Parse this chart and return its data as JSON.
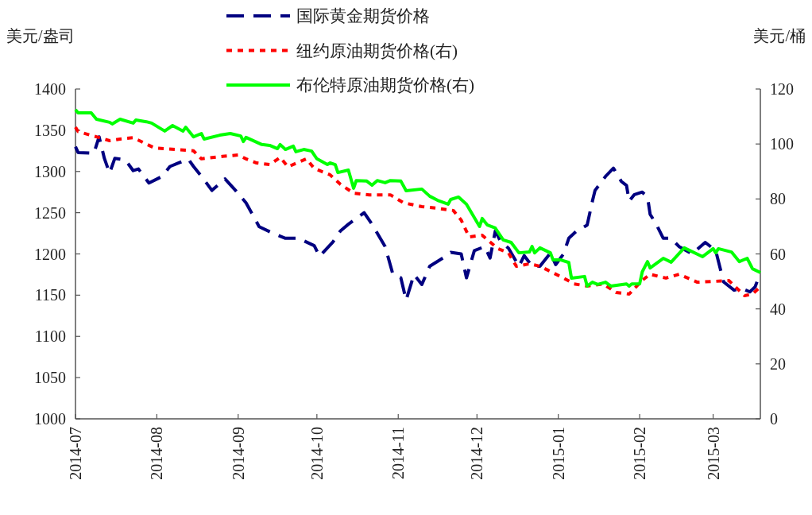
{
  "chart_data": {
    "type": "line",
    "xlabel": null,
    "ylabel": "美元/盎司",
    "y2label": "美元/桶",
    "legend": "top",
    "xlim": [
      "2014-07-01",
      "2015-03-19"
    ],
    "xticks": [
      {
        "value": "2014-07-01",
        "label": "2014-07"
      },
      {
        "value": "2014-08-01",
        "label": "2014-08"
      },
      {
        "value": "2014-09-01",
        "label": "2014-09"
      },
      {
        "value": "2014-10-01",
        "label": "2014-10"
      },
      {
        "value": "2014-11-01",
        "label": "2014-11"
      },
      {
        "value": "2014-12-01",
        "label": "2014-12"
      },
      {
        "value": "2015-01-01",
        "label": "2015-01"
      },
      {
        "value": "2015-02-01",
        "label": "2015-02"
      },
      {
        "value": "2015-03-01",
        "label": "2015-03"
      }
    ],
    "ylim": [
      1000,
      1400
    ],
    "yticks": [
      1000,
      1050,
      1100,
      1150,
      1200,
      1250,
      1300,
      1350,
      1400
    ],
    "y2lim": [
      0,
      120
    ],
    "y2ticks": [
      0,
      20,
      40,
      60,
      80,
      100,
      120
    ],
    "series": [
      {
        "name": "国际黄金期货价格",
        "color": "#000080",
        "axis": "y",
        "line_style": "dashed",
        "x": [
          "2014-07-01",
          "2014-07-02",
          "2014-07-08",
          "2014-07-10",
          "2014-07-12",
          "2014-07-14",
          "2014-07-16",
          "2014-07-20",
          "2014-07-23",
          "2014-07-25",
          "2014-07-29",
          "2014-08-03",
          "2014-08-06",
          "2014-08-09",
          "2014-08-13",
          "2014-08-15",
          "2014-08-19",
          "2014-08-22",
          "2014-08-27",
          "2014-08-31",
          "2014-09-04",
          "2014-09-09",
          "2014-09-15",
          "2014-09-19",
          "2014-09-24",
          "2014-09-30",
          "2014-10-02",
          "2014-10-07",
          "2014-10-10",
          "2014-10-13",
          "2014-10-19",
          "2014-10-22",
          "2014-10-27",
          "2014-10-30",
          "2014-11-02",
          "2014-11-04",
          "2014-11-07",
          "2014-11-10",
          "2014-11-13",
          "2014-11-18",
          "2014-11-21",
          "2014-11-25",
          "2014-11-27",
          "2014-11-30",
          "2014-12-04",
          "2014-12-06",
          "2014-12-08",
          "2014-12-10",
          "2014-12-13",
          "2014-12-17",
          "2014-12-19",
          "2014-12-22",
          "2014-12-25",
          "2014-12-29",
          "2014-12-31",
          "2015-01-03",
          "2015-01-05",
          "2015-01-08",
          "2015-01-12",
          "2015-01-14",
          "2015-01-15",
          "2015-01-19",
          "2015-01-22",
          "2015-01-25",
          "2015-01-27",
          "2015-01-28",
          "2015-01-30",
          "2015-02-02",
          "2015-02-04",
          "2015-02-05",
          "2015-02-07",
          "2015-02-10",
          "2015-02-13",
          "2015-02-16",
          "2015-02-21",
          "2015-02-26",
          "2015-03-02",
          "2015-03-05",
          "2015-03-09",
          "2015-03-12",
          "2015-03-15",
          "2015-03-17",
          "2015-03-19"
        ],
        "values": [
          1330,
          1323,
          1322,
          1342,
          1316,
          1298,
          1316,
          1314,
          1301,
          1303,
          1286,
          1294,
          1306,
          1310,
          1315,
          1306,
          1290,
          1277,
          1291,
          1277,
          1262,
          1233,
          1224,
          1219,
          1219,
          1210,
          1197,
          1214,
          1228,
          1236,
          1250,
          1236,
          1209,
          1175,
          1171,
          1144,
          1175,
          1163,
          1185,
          1195,
          1202,
          1200,
          1171,
          1204,
          1209,
          1195,
          1228,
          1215,
          1207,
          1185,
          1198,
          1185,
          1185,
          1201,
          1187,
          1200,
          1219,
          1228,
          1235,
          1264,
          1277,
          1294,
          1304,
          1288,
          1283,
          1264,
          1272,
          1275,
          1269,
          1248,
          1238,
          1219,
          1219,
          1209,
          1200,
          1214,
          1204,
          1166,
          1156,
          1158,
          1154,
          1160,
          1177
        ]
      },
      {
        "name": "纽约原油期货价格(右)",
        "color": "#ff0000",
        "axis": "y2",
        "line_style": "dotted",
        "x": [
          "2014-07-01",
          "2014-07-02",
          "2014-07-09",
          "2014-07-14",
          "2014-07-18",
          "2014-07-23",
          "2014-07-31",
          "2014-08-08",
          "2014-08-15",
          "2014-08-18",
          "2014-08-26",
          "2014-09-01",
          "2014-09-04",
          "2014-09-08",
          "2014-09-13",
          "2014-09-17",
          "2014-09-20",
          "2014-09-27",
          "2014-09-30",
          "2014-10-06",
          "2014-10-10",
          "2014-10-15",
          "2014-10-21",
          "2014-10-29",
          "2014-11-03",
          "2014-11-10",
          "2014-11-16",
          "2014-11-22",
          "2014-11-25",
          "2014-11-28",
          "2014-12-03",
          "2014-12-09",
          "2014-12-13",
          "2014-12-16",
          "2014-12-21",
          "2014-12-25",
          "2014-12-28",
          "2015-01-03",
          "2015-01-07",
          "2015-01-12",
          "2015-01-18",
          "2015-01-23",
          "2015-01-28",
          "2015-02-02",
          "2015-02-05",
          "2015-02-11",
          "2015-02-16",
          "2015-02-23",
          "2015-03-01",
          "2015-03-07",
          "2015-03-13",
          "2015-03-16",
          "2015-03-19"
        ],
        "values": [
          106.1,
          104.5,
          102.6,
          101.2,
          101.8,
          102.3,
          98.6,
          98.0,
          97.5,
          94.6,
          95.5,
          96.0,
          94.6,
          93.1,
          92.5,
          95.1,
          91.7,
          94.6,
          91.1,
          88.8,
          85.3,
          82.1,
          81.5,
          81.5,
          78.6,
          77.2,
          76.6,
          75.8,
          72.3,
          66.2,
          66.8,
          61.9,
          60.4,
          55.5,
          56.4,
          55.5,
          54.1,
          51.2,
          49.1,
          48.3,
          49.1,
          46.0,
          45.4,
          50.4,
          52.6,
          51.2,
          52.6,
          49.7,
          50.0,
          50.3,
          44.8,
          45.4,
          48.0
        ]
      },
      {
        "name": "布伦特原油期货价格(右)",
        "color": "#00ff00",
        "axis": "y2",
        "line_style": "solid",
        "x": [
          "2014-07-01",
          "2014-07-02",
          "2014-07-07",
          "2014-07-09",
          "2014-07-14",
          "2014-07-15",
          "2014-07-18",
          "2014-07-23",
          "2014-07-24",
          "2014-07-28",
          "2014-07-30",
          "2014-08-04",
          "2014-08-07",
          "2014-08-11",
          "2014-08-12",
          "2014-08-15",
          "2014-08-18",
          "2014-08-19",
          "2014-08-25",
          "2014-08-29",
          "2014-09-02",
          "2014-09-03",
          "2014-09-04",
          "2014-09-10",
          "2014-09-13",
          "2014-09-16",
          "2014-09-17",
          "2014-09-19",
          "2014-09-22",
          "2014-09-23",
          "2014-09-26",
          "2014-09-29",
          "2014-10-01",
          "2014-10-05",
          "2014-10-06",
          "2014-10-08",
          "2014-10-09",
          "2014-10-13",
          "2014-10-15",
          "2014-10-16",
          "2014-10-20",
          "2014-10-22",
          "2014-10-24",
          "2014-10-27",
          "2014-10-29",
          "2014-11-02",
          "2014-11-04",
          "2014-11-10",
          "2014-11-13",
          "2014-11-16",
          "2014-11-20",
          "2014-11-21",
          "2014-11-24",
          "2014-11-27",
          "2014-12-02",
          "2014-12-03",
          "2014-12-05",
          "2014-12-08",
          "2014-12-11",
          "2014-12-14",
          "2014-12-17",
          "2014-12-21",
          "2014-12-22",
          "2014-12-23",
          "2014-12-25",
          "2014-12-29",
          "2014-12-30",
          "2015-01-02",
          "2015-01-05",
          "2015-01-06",
          "2015-01-11",
          "2015-01-12",
          "2015-01-14",
          "2015-01-16",
          "2015-01-19",
          "2015-01-21",
          "2015-01-27",
          "2015-01-28",
          "2015-01-29",
          "2015-02-01",
          "2015-02-02",
          "2015-02-04",
          "2015-02-05",
          "2015-02-10",
          "2015-02-13",
          "2015-02-18",
          "2015-02-25",
          "2015-03-01",
          "2015-03-02",
          "2015-03-03",
          "2015-03-08",
          "2015-03-11",
          "2015-03-14",
          "2015-03-16",
          "2015-03-19"
        ],
        "values": [
          112.5,
          111.3,
          111.3,
          109.0,
          107.9,
          107.3,
          109.0,
          107.6,
          108.7,
          108.1,
          107.6,
          104.7,
          106.7,
          104.7,
          106.1,
          102.6,
          103.8,
          101.8,
          103.2,
          103.8,
          102.9,
          100.9,
          102.4,
          99.8,
          99.5,
          98.3,
          99.8,
          98.0,
          99.2,
          97.2,
          98.0,
          97.4,
          94.6,
          92.5,
          93.1,
          92.5,
          89.6,
          90.5,
          83.9,
          86.7,
          86.5,
          85.0,
          86.7,
          85.9,
          86.7,
          86.5,
          83.0,
          83.6,
          81.0,
          79.5,
          78.1,
          79.8,
          80.7,
          78.1,
          70.0,
          72.9,
          70.5,
          69.4,
          65.1,
          64.2,
          60.4,
          60.7,
          62.7,
          60.4,
          62.2,
          60.4,
          57.8,
          57.8,
          56.9,
          51.2,
          51.8,
          48.3,
          49.7,
          48.9,
          49.7,
          48.3,
          49.1,
          48.3,
          49.1,
          49.1,
          53.5,
          57.2,
          54.9,
          58.4,
          57.0,
          62.2,
          59.0,
          61.9,
          60.4,
          61.9,
          60.7,
          57.2,
          58.4,
          54.6,
          53.2
        ]
      }
    ]
  }
}
